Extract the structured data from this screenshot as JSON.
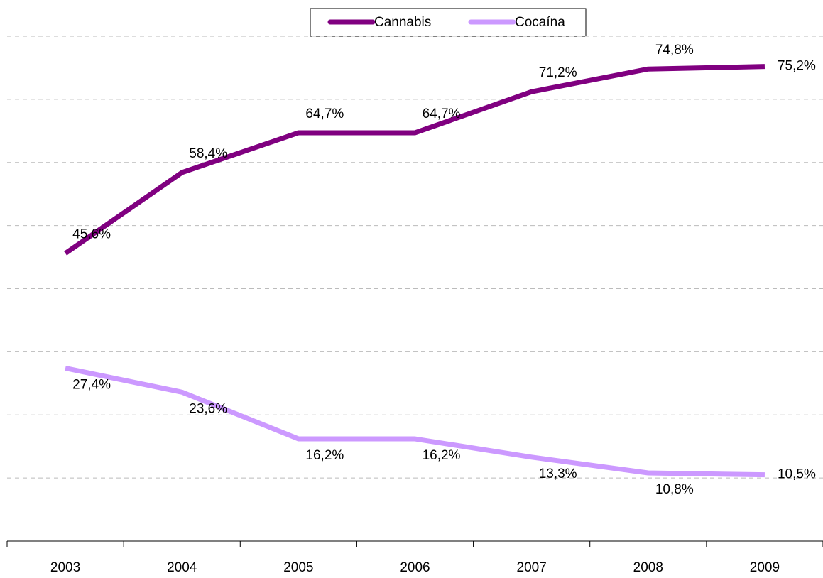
{
  "chart_data": {
    "type": "line",
    "categories": [
      "2003",
      "2004",
      "2005",
      "2006",
      "2007",
      "2008",
      "2009"
    ],
    "series": [
      {
        "name": "Cannabis",
        "color": "#800080",
        "values": [
          45.6,
          58.4,
          64.7,
          64.7,
          71.2,
          74.8,
          75.2
        ],
        "value_labels": [
          "45,6%",
          "58,4%",
          "64,7%",
          "64,7%",
          "71,2%",
          "74,8%",
          "75,2%"
        ]
      },
      {
        "name": "Cocaína",
        "color": "#cc99ff",
        "values": [
          27.4,
          23.6,
          16.2,
          16.2,
          13.3,
          10.8,
          10.5
        ],
        "value_labels": [
          "27,4%",
          "23,6%",
          "16,2%",
          "16,2%",
          "13,3%",
          "10,8%",
          "10,5%"
        ]
      }
    ],
    "ylim": [
      0,
      80
    ],
    "yticks": [
      10,
      20,
      30,
      40,
      50,
      60,
      70,
      80
    ],
    "grid": true,
    "legend": "top"
  }
}
